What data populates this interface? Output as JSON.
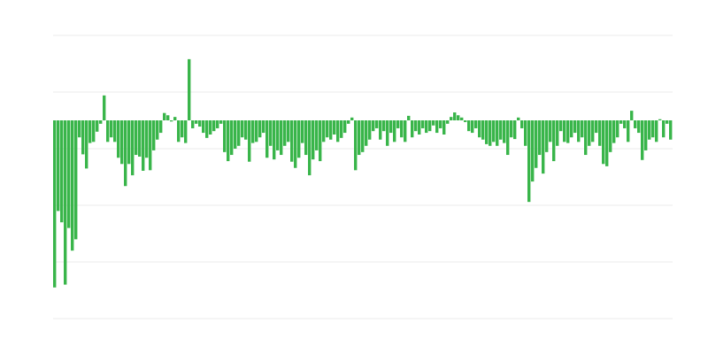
{
  "chart_data": {
    "type": "bar",
    "title": "",
    "xlabel": "",
    "ylabel": "",
    "ylim": [
      -35,
      15
    ],
    "gridlines": [
      15,
      5,
      -5,
      -15,
      -25,
      -35
    ],
    "grid": true,
    "legend": "none",
    "bar_color": "#39b54a",
    "grid_color": "#ebebeb",
    "values": [
      -29.5,
      -16,
      -18,
      -29,
      -19,
      -23,
      -21,
      -3,
      -6,
      -8.5,
      -4,
      -3.8,
      -2,
      -0.6,
      4.4,
      -3.8,
      -3,
      -3.8,
      -6.6,
      -7.7,
      -11.6,
      -7.7,
      -9.7,
      -6.1,
      -6.4,
      -8.9,
      -6.6,
      -8.8,
      -5.3,
      -3.4,
      -2.2,
      1.3,
      0.9,
      -0.2,
      0.6,
      -3.8,
      -3,
      -4,
      10.8,
      -1.4,
      -0.6,
      -1.1,
      -2.2,
      -3.1,
      -2.5,
      -1.9,
      -1.4,
      -0.6,
      -5.6,
      -7.2,
      -6.1,
      -5,
      -4.5,
      -3,
      -3.4,
      -7.3,
      -4,
      -3.8,
      -3,
      -2.2,
      -6.6,
      -4.5,
      -6.9,
      -5.3,
      -6.1,
      -4.5,
      -3.8,
      -7.3,
      -8.4,
      -6.6,
      -4,
      -6.1,
      -9.7,
      -6.9,
      -5.3,
      -7.2,
      -3.8,
      -3,
      -3.4,
      -2.5,
      -3.8,
      -3.1,
      -2.2,
      -0.6,
      0.5,
      -8.8,
      -6.1,
      -5.6,
      -4.5,
      -3.4,
      -1.9,
      -1.4,
      -3.4,
      -1.9,
      -4.5,
      -2.2,
      -3.8,
      -1.4,
      -3,
      -3.8,
      0.8,
      -3,
      -1.9,
      -2.5,
      -1.4,
      -2.2,
      -1.9,
      -0.9,
      -2.2,
      -1.4,
      -2.5,
      -0.6,
      0.6,
      1.4,
      0.9,
      0.5,
      -0.3,
      -1.9,
      -2.2,
      -1.4,
      -3,
      -3.4,
      -4.2,
      -4.5,
      -3.8,
      -4.5,
      -3.4,
      -4,
      -6.1,
      -3,
      -3.3,
      0.5,
      -1.4,
      -4.5,
      -14.4,
      -10.8,
      -8.4,
      -6.1,
      -9.4,
      -5.6,
      -3.8,
      -7.2,
      -4.5,
      -1.9,
      -3.8,
      -4,
      -3,
      -2.2,
      -3.8,
      -3,
      -6.1,
      -4.5,
      -3.8,
      -2.2,
      -4.5,
      -7.7,
      -8.1,
      -5.6,
      -4,
      -3,
      -0.6,
      -1.4,
      -3.8,
      1.7,
      -1.4,
      -2.2,
      -7,
      -5.3,
      -3.4,
      -3,
      -3.8,
      0.2,
      -3,
      -0.6,
      -3.4
    ]
  }
}
